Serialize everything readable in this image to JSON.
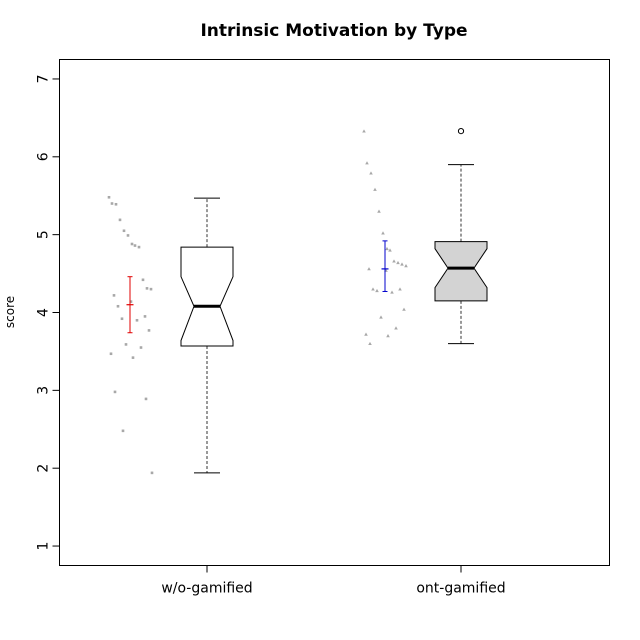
{
  "chart_data": {
    "type": "box",
    "title": "Intrinsic Motivation by Type",
    "xlabel": "",
    "ylabel": "score",
    "ylim": [
      0.75,
      7.25
    ],
    "yticks": [
      1,
      2,
      3,
      4,
      5,
      6,
      7
    ],
    "categories": [
      "w/o-gamified",
      "ont-gamified"
    ],
    "grid": false,
    "legend": "none",
    "boxes": [
      {
        "category": "w/o-gamified",
        "fill": "#ffffff",
        "whisker_low": 1.94,
        "q1": 3.57,
        "median": 4.08,
        "q3": 4.84,
        "whisker_high": 5.47,
        "notch_low": 3.64,
        "notch_high": 4.46,
        "outliers": []
      },
      {
        "category": "ont-gamified",
        "fill": "#d3d3d3",
        "whisker_low": 3.6,
        "q1": 4.15,
        "median": 4.57,
        "q3": 4.91,
        "whisker_high": 5.9,
        "notch_low": 4.32,
        "notch_high": 4.82,
        "outliers": [
          6.33
        ]
      }
    ],
    "mean_ci": [
      {
        "category": "w/o-gamified",
        "mean": 4.1,
        "low": 3.74,
        "high": 4.46,
        "color": "#e00000"
      },
      {
        "category": "ont-gamified",
        "mean": 4.56,
        "low": 4.27,
        "high": 4.92,
        "color": "#0000cc"
      }
    ],
    "jitter_points": [
      {
        "category": "w/o-gamified",
        "values": [
          5.48,
          5.4,
          5.39,
          5.19,
          5.05,
          4.99,
          4.88,
          4.86,
          4.84,
          4.42,
          4.31,
          4.3,
          4.22,
          4.14,
          4.08,
          3.95,
          3.92,
          3.9,
          3.77,
          3.59,
          3.55,
          3.47,
          3.42,
          2.98,
          2.89,
          2.48,
          1.94
        ]
      },
      {
        "category": "ont-gamified",
        "values": [
          6.33,
          5.92,
          5.79,
          5.58,
          5.3,
          5.02,
          4.82,
          4.8,
          4.66,
          4.64,
          4.62,
          4.6,
          4.56,
          4.54,
          4.3,
          4.3,
          4.28,
          4.26,
          4.04,
          3.94,
          3.8,
          3.72,
          3.7,
          3.6
        ]
      }
    ]
  }
}
